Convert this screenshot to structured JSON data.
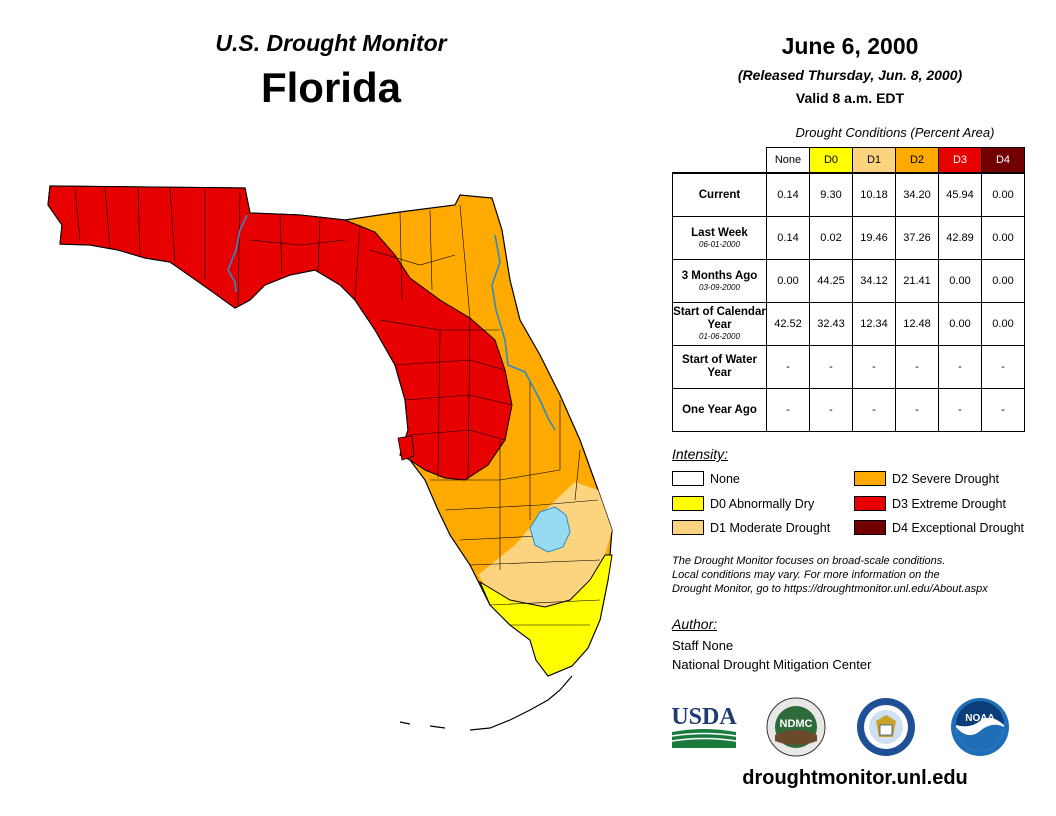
{
  "header": {
    "subtitle": "U.S. Drought Monitor",
    "state": "Florida",
    "date": "June 6, 2000",
    "released": "(Released Thursday, Jun. 8, 2000)",
    "valid": "Valid 8 a.m. EDT"
  },
  "table": {
    "caption": "Drought Conditions (Percent Area)",
    "columns": [
      "None",
      "D0",
      "D1",
      "D2",
      "D3",
      "D4"
    ],
    "column_colors": [
      "#ffffff",
      "#ffff00",
      "#fcd37f",
      "#ffaa00",
      "#e60000",
      "#730000"
    ],
    "rows": [
      {
        "label": "Current",
        "sub": "",
        "values": [
          "0.14",
          "9.30",
          "10.18",
          "34.20",
          "45.94",
          "0.00"
        ]
      },
      {
        "label": "Last Week",
        "sub": "06-01-2000",
        "values": [
          "0.14",
          "0.02",
          "19.46",
          "37.26",
          "42.89",
          "0.00"
        ]
      },
      {
        "label": "3 Months Ago",
        "sub": "03-09-2000",
        "values": [
          "0.00",
          "44.25",
          "34.12",
          "21.41",
          "0.00",
          "0.00"
        ]
      },
      {
        "label": "Start of Calendar Year",
        "sub": "01-06-2000",
        "values": [
          "42.52",
          "32.43",
          "12.34",
          "12.48",
          "0.00",
          "0.00"
        ]
      },
      {
        "label": "Start of Water Year",
        "sub": "",
        "values": [
          "-",
          "-",
          "-",
          "-",
          "-",
          "-"
        ]
      },
      {
        "label": "One Year Ago",
        "sub": "",
        "values": [
          "-",
          "-",
          "-",
          "-",
          "-",
          "-"
        ]
      }
    ]
  },
  "intensity": {
    "title": "Intensity:",
    "items": [
      {
        "label": "None",
        "color": "#ffffff"
      },
      {
        "label": "D0 Abnormally Dry",
        "color": "#ffff00"
      },
      {
        "label": "D1 Moderate Drought",
        "color": "#fcd37f"
      },
      {
        "label": "D2 Severe Drought",
        "color": "#ffaa00"
      },
      {
        "label": "D3 Extreme Drought",
        "color": "#e60000"
      },
      {
        "label": "D4 Exceptional Drought",
        "color": "#730000"
      }
    ]
  },
  "note": {
    "line1": "The Drought Monitor focuses on broad-scale conditions.",
    "line2": "Local conditions may vary. For more information on the",
    "line3": "Drought Monitor, go to https://droughtmonitor.unl.edu/About.aspx"
  },
  "author": {
    "title": "Author:",
    "name": "Staff None",
    "org": "National Drought Mitigation Center"
  },
  "logos": {
    "usda": "USDA",
    "ndmc": "NDMC",
    "noaa": "NOAA"
  },
  "footer": {
    "site": "droughtmonitor.unl.edu"
  }
}
